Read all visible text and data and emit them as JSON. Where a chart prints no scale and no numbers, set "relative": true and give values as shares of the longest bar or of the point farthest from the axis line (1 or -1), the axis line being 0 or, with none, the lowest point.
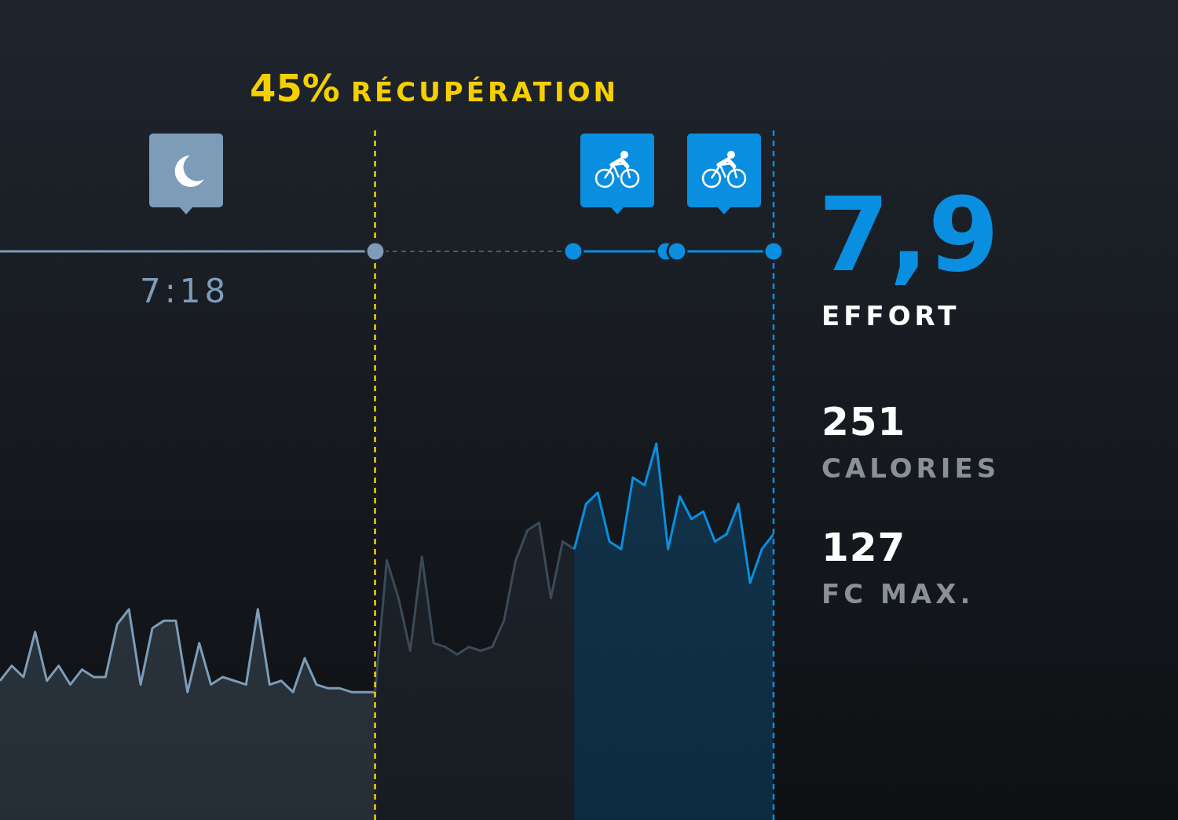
{
  "chart_data": {
    "type": "area",
    "title": "45% RÉCUPÉRATION",
    "relative": true,
    "tick_labels": false,
    "categories": [
      null,
      null,
      null,
      null,
      null,
      null,
      null,
      null,
      null,
      null,
      null,
      null,
      null,
      null,
      null,
      null,
      null,
      null,
      null,
      null,
      null,
      null,
      null,
      null,
      null,
      null,
      null,
      null,
      null,
      null,
      null,
      null,
      null,
      null,
      null,
      null,
      null,
      null,
      null,
      null,
      null,
      null,
      null,
      null,
      null,
      null,
      null,
      null,
      null,
      null,
      null,
      null,
      null,
      null,
      null,
      null,
      null,
      null,
      null,
      null,
      null,
      null,
      null,
      null,
      null,
      null,
      null
    ],
    "series": [
      {
        "color": "#7d9cb8",
        "values": [
          0.37,
          0.41,
          0.38,
          0.5,
          0.37,
          0.41,
          0.36,
          0.4,
          0.38,
          0.38,
          0.52,
          0.56,
          0.36,
          0.51,
          0.53,
          0.53,
          0.34,
          0.47,
          0.36,
          0.38,
          0.37,
          0.36,
          0.56,
          0.36,
          0.37,
          0.34,
          0.43,
          0.36,
          0.35,
          0.35,
          0.34,
          0.34,
          0.34,
          null,
          null,
          null,
          null,
          null,
          null,
          null,
          null,
          null,
          null,
          null,
          null,
          null,
          null,
          null,
          null,
          null,
          null,
          null,
          null,
          null,
          null,
          null,
          null,
          null,
          null,
          null,
          null,
          null,
          null,
          null,
          null,
          null,
          null
        ]
      },
      {
        "color": "#3b4a59",
        "values": [
          null,
          null,
          null,
          null,
          null,
          null,
          null,
          null,
          null,
          null,
          null,
          null,
          null,
          null,
          null,
          null,
          null,
          null,
          null,
          null,
          null,
          null,
          null,
          null,
          null,
          null,
          null,
          null,
          null,
          null,
          null,
          null,
          0.34,
          0.69,
          0.59,
          0.45,
          0.7,
          0.47,
          0.46,
          0.44,
          0.46,
          0.45,
          0.46,
          0.53,
          0.69,
          0.77,
          0.79,
          0.59,
          0.74,
          0.72,
          null,
          null,
          null,
          null,
          null,
          null,
          null,
          null,
          null,
          null,
          null,
          null,
          null,
          null,
          null,
          null,
          null
        ]
      },
      {
        "color": "#0a8fe0",
        "values": [
          null,
          null,
          null,
          null,
          null,
          null,
          null,
          null,
          null,
          null,
          null,
          null,
          null,
          null,
          null,
          null,
          null,
          null,
          null,
          null,
          null,
          null,
          null,
          null,
          null,
          null,
          null,
          null,
          null,
          null,
          null,
          null,
          null,
          null,
          null,
          null,
          null,
          null,
          null,
          null,
          null,
          null,
          null,
          null,
          null,
          null,
          null,
          null,
          null,
          0.72,
          0.84,
          0.87,
          0.74,
          0.72,
          0.91,
          0.89,
          1,
          0.72,
          0.86,
          0.8,
          0.82,
          0.74,
          0.76,
          0.84,
          0.63,
          0.72,
          0.76
        ]
      }
    ],
    "annotations": [
      "7:18",
      "7,9",
      "EFFORT",
      "251",
      "CALORIES",
      "127",
      "FC MAX."
    ]
  }
}
